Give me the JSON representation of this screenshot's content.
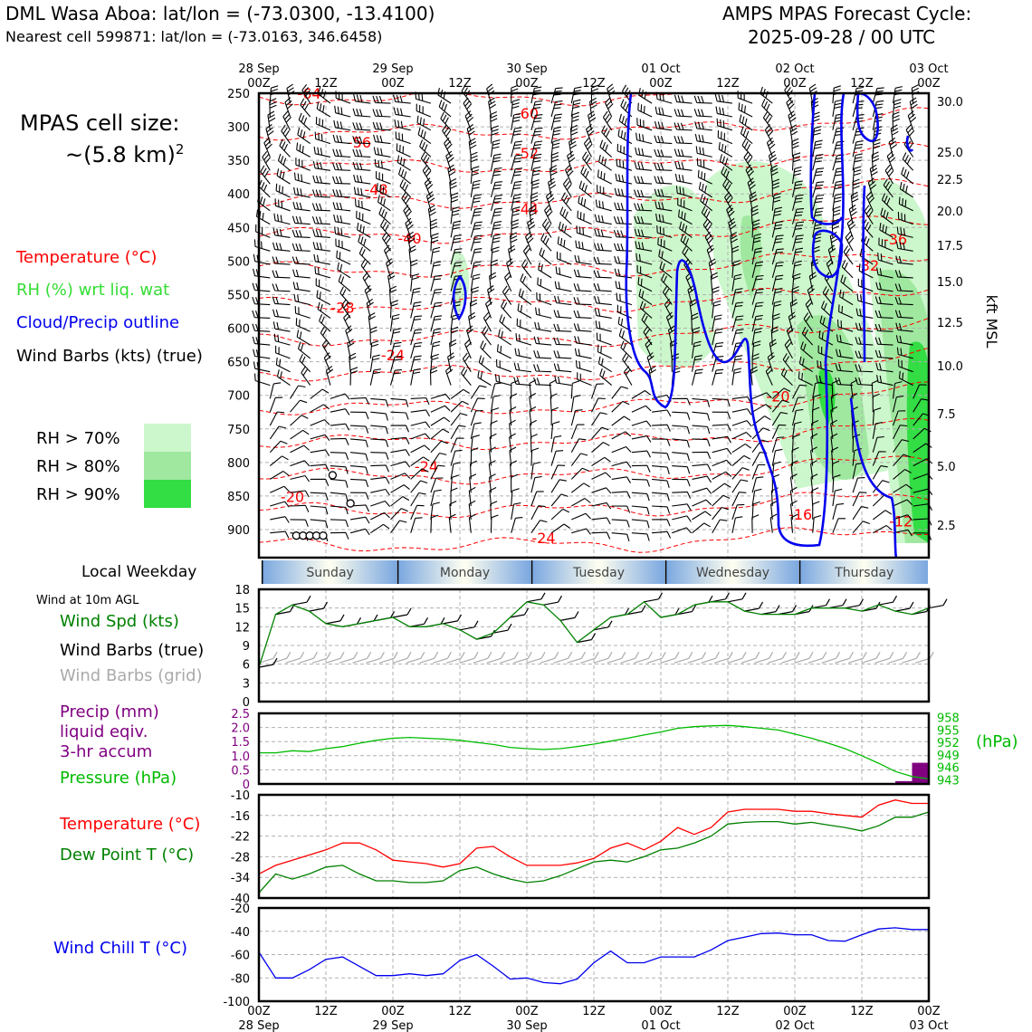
{
  "header": {
    "title_left": "DML Wasa Aboa: lat/lon = (-73.0300, -13.4100)",
    "subtitle_left": "Nearest cell 599871: lat/lon = (-73.0163, 346.6458)",
    "title_right_1": "AMPS MPAS Forecast Cycle:",
    "title_right_2": "2025-09-28 / 00 UTC"
  },
  "cell_size": {
    "line1": "MPAS cell size:",
    "line2": "~(5.8 km)",
    "exp": "2"
  },
  "legend_top": {
    "temperature": "Temperature (°C)",
    "rh": "RH (%) wrt liq. wat",
    "cloud": "Cloud/Precip outline",
    "barbs": "Wind Barbs (kts) (true)",
    "rh70": "RH > 70%",
    "rh80": "RH > 80%",
    "rh90": "RH > 90%"
  },
  "colors": {
    "temp": "#ff0000",
    "rh_text": "#33dd33",
    "cloud": "#0000ee",
    "rh70": "#ccf7cc",
    "rh80": "#a0e8a0",
    "rh90": "#33dd44",
    "wind_speed": "#008000",
    "precip": "#800080",
    "pressure": "#00bb00",
    "dewpoint": "#008000",
    "windchill": "#0000ee",
    "grid_barb": "#aaaaaa",
    "weekday_band": "#7aa7e0"
  },
  "weekday": {
    "title": "Local Weekday",
    "days": [
      "Sunday",
      "Monday",
      "Tuesday",
      "Wednesday",
      "Thursday"
    ]
  },
  "wind_panel": {
    "header": "Wind at 10m AGL",
    "spd_label": "Wind Spd (kts)",
    "barbs_true": "Wind Barbs (true)",
    "barbs_grid": "Wind Barbs (grid)"
  },
  "precip_panel": {
    "l1": "Precip (mm)",
    "l2": "liquid eqiv.",
    "l3": "3-hr accum",
    "pressure_label": "Pressure (hPa)",
    "hpa_unit": "(hPa)"
  },
  "temp_panel": {
    "temp_label": "Temperature (°C)",
    "dew_label": "Dew Point T (°C)"
  },
  "windchill_panel": {
    "label": "Wind Chill T (°C)"
  },
  "x_axis": {
    "top_labels": [
      [
        "28 Sep",
        "00Z"
      ],
      [
        "",
        "12Z"
      ],
      [
        "29 Sep",
        "00Z"
      ],
      [
        "",
        "12Z"
      ],
      [
        "30 Sep",
        "00Z"
      ],
      [
        "",
        "12Z"
      ],
      [
        "01 Oct",
        "00Z"
      ],
      [
        "",
        "12Z"
      ],
      [
        "02 Oct",
        "00Z"
      ],
      [
        "",
        "12Z"
      ],
      [
        "03 Oct",
        "00Z"
      ]
    ],
    "bottom_labels": [
      [
        "00Z",
        "28 Sep"
      ],
      [
        "12Z",
        ""
      ],
      [
        "00Z",
        "29 Sep"
      ],
      [
        "12Z",
        ""
      ],
      [
        "00Z",
        "30 Sep"
      ],
      [
        "12Z",
        ""
      ],
      [
        "00Z",
        "01 Oct"
      ],
      [
        "12Z",
        ""
      ],
      [
        "00Z",
        "02 Oct"
      ],
      [
        "12Z",
        ""
      ],
      [
        "00Z",
        "03 Oct"
      ]
    ]
  },
  "chart_data": [
    {
      "type": "heatmap",
      "title": "time-height cross section",
      "ylabel_right": "kft MSL",
      "x_range_hours": [
        0,
        120
      ],
      "y_pressure_ticks": [
        250,
        300,
        350,
        400,
        450,
        500,
        550,
        600,
        650,
        700,
        750,
        800,
        850,
        900
      ],
      "y_kft_ticks": [
        30.0,
        25.0,
        22.5,
        20.0,
        17.5,
        15.0,
        12.5,
        10.0,
        7.5,
        5.0,
        2.5
      ],
      "y_kft_labels": [
        "30.0",
        "25.0",
        "22.5",
        "20.0",
        "17.5",
        "15.0",
        "12.5",
        "10.0",
        "7.5",
        "5.0",
        "2.5"
      ],
      "temp_contour_labels": [
        {
          "text": "-64",
          "h": 9,
          "p": 258
        },
        {
          "text": "-60",
          "h": 48,
          "p": 288
        },
        {
          "text": "-56",
          "h": 18,
          "p": 331
        },
        {
          "text": "-52",
          "h": 48,
          "p": 347
        },
        {
          "text": "-48",
          "h": 21,
          "p": 401
        },
        {
          "text": "-44",
          "h": 48,
          "p": 430
        },
        {
          "text": "-40",
          "h": 27,
          "p": 474
        },
        {
          "text": "-36",
          "h": 114,
          "p": 475
        },
        {
          "text": "-32",
          "h": 109,
          "p": 514
        },
        {
          "text": "-28",
          "h": 15,
          "p": 577
        },
        {
          "text": "-24",
          "h": 24,
          "p": 648
        },
        {
          "text": "-24",
          "h": 30,
          "p": 814
        },
        {
          "text": "-24",
          "h": 51,
          "p": 920
        },
        {
          "text": "-20",
          "h": 93,
          "p": 709
        },
        {
          "text": "-20",
          "h": 6,
          "p": 859
        },
        {
          "text": "-16",
          "h": 97,
          "p": 885
        },
        {
          "text": "-12",
          "h": 115,
          "p": 895
        }
      ]
    },
    {
      "type": "line",
      "title": "Wind at 10m AGL",
      "ylabel": "Wind Spd (kts)",
      "ylim": [
        0,
        18
      ],
      "yticks": [
        0,
        3,
        6,
        9,
        12,
        15,
        18
      ],
      "x_hours": [
        0,
        3,
        6,
        9,
        12,
        15,
        18,
        21,
        24,
        27,
        30,
        33,
        36,
        39,
        42,
        45,
        48,
        51,
        54,
        57,
        60,
        63,
        66,
        69,
        72,
        75,
        78,
        81,
        84,
        87,
        90,
        93,
        96,
        99,
        102,
        105,
        108,
        111,
        114,
        117,
        120
      ],
      "series": [
        {
          "name": "Wind Spd (kts)",
          "values": [
            5.5,
            14.0,
            15.5,
            14.5,
            12.5,
            12.0,
            12.5,
            13.0,
            13.5,
            12.0,
            12.0,
            12.5,
            11.5,
            10.0,
            11.0,
            13.5,
            16.0,
            15.5,
            13.0,
            9.5,
            11.5,
            13.5,
            14.0,
            16.0,
            13.5,
            14.0,
            15.5,
            16.0,
            16.0,
            14.5,
            14.0,
            14.0,
            14.0,
            15.0,
            15.0,
            15.0,
            14.5,
            15.5,
            14.5,
            14.0,
            15.0
          ]
        }
      ]
    },
    {
      "type": "bar",
      "title": "Precip (mm) liquid eqiv. 3-hr accum",
      "ylim": [
        0,
        2.5
      ],
      "yticks": [
        0,
        0.5,
        1.0,
        1.5,
        2.0,
        2.5
      ],
      "ytick_labels": [
        "0",
        "0.5",
        "1.0",
        "1.5",
        "2.0",
        "2.5"
      ],
      "bars": [
        {
          "x_hours": [
            114,
            117
          ],
          "value": 0.1
        },
        {
          "x_hours": [
            117,
            120
          ],
          "value": 0.75
        }
      ]
    },
    {
      "type": "line",
      "title": "Pressure (hPa)",
      "ylim": [
        942,
        959
      ],
      "yticks": [
        943,
        946,
        949,
        952,
        955,
        958
      ],
      "x_hours": [
        0,
        3,
        6,
        9,
        12,
        15,
        18,
        21,
        24,
        27,
        30,
        33,
        36,
        39,
        42,
        45,
        48,
        51,
        54,
        57,
        60,
        63,
        66,
        69,
        72,
        75,
        78,
        81,
        84,
        87,
        90,
        93,
        96,
        99,
        102,
        105,
        108,
        111,
        114,
        117,
        120
      ],
      "series": [
        {
          "name": "Pressure (hPa)",
          "values": [
            949.5,
            949.5,
            950.0,
            949.8,
            950.5,
            951.0,
            951.8,
            952.5,
            953.0,
            953.2,
            953.0,
            952.8,
            952.5,
            952.0,
            951.5,
            950.8,
            950.5,
            950.3,
            950.5,
            951.0,
            951.6,
            952.3,
            953.0,
            953.8,
            954.5,
            955.4,
            955.8,
            956.0,
            956.1,
            955.8,
            955.4,
            955.0,
            954.0,
            953.0,
            951.8,
            950.5,
            948.8,
            947.0,
            945.0,
            943.8,
            943.2
          ]
        }
      ]
    },
    {
      "type": "line",
      "title": "Temperature / Dew Point",
      "ylim": [
        -40,
        -10
      ],
      "yticks": [
        -40,
        -34,
        -28,
        -22,
        -16,
        -10
      ],
      "x_hours": [
        0,
        3,
        6,
        9,
        12,
        15,
        18,
        21,
        24,
        27,
        30,
        33,
        36,
        39,
        42,
        45,
        48,
        51,
        54,
        57,
        60,
        63,
        66,
        69,
        72,
        75,
        78,
        81,
        84,
        87,
        90,
        93,
        96,
        99,
        102,
        105,
        108,
        111,
        114,
        117,
        120
      ],
      "series": [
        {
          "name": "Temperature (°C)",
          "values": [
            -33,
            -30.5,
            -29,
            -27.5,
            -26,
            -24,
            -24,
            -26,
            -29,
            -29.5,
            -30,
            -31,
            -30,
            -25.5,
            -25,
            -28,
            -30.5,
            -30.5,
            -30.5,
            -29.8,
            -28.5,
            -25.5,
            -24,
            -26,
            -23.5,
            -19.5,
            -21.5,
            -19.5,
            -15,
            -14.2,
            -14.2,
            -14.2,
            -14.8,
            -14.8,
            -15.5,
            -16,
            -16.5,
            -13,
            -11.5,
            -12.5,
            -12.5
          ]
        },
        {
          "name": "Dew Point T (°C)",
          "values": [
            -38.5,
            -33,
            -34.5,
            -33,
            -31,
            -30.5,
            -33,
            -35,
            -35,
            -35.5,
            -35.5,
            -35,
            -32,
            -31,
            -33,
            -34.5,
            -35.5,
            -35,
            -33.5,
            -31.5,
            -29.5,
            -29,
            -29.5,
            -28,
            -26,
            -25.5,
            -24,
            -22,
            -18.5,
            -18,
            -17.8,
            -17.8,
            -18.5,
            -18,
            -18.8,
            -19.5,
            -20.5,
            -19,
            -16.5,
            -16.5,
            -15
          ]
        }
      ]
    },
    {
      "type": "line",
      "title": "Wind Chill T (°C)",
      "ylim": [
        -100,
        -20
      ],
      "yticks": [
        -100,
        -80,
        -60,
        -40,
        -20
      ],
      "x_hours": [
        0,
        3,
        6,
        9,
        12,
        15,
        18,
        21,
        24,
        27,
        30,
        33,
        36,
        39,
        42,
        45,
        48,
        51,
        54,
        57,
        60,
        63,
        66,
        69,
        72,
        75,
        78,
        81,
        84,
        87,
        90,
        93,
        96,
        99,
        102,
        105,
        108,
        111,
        114,
        117,
        120
      ],
      "series": [
        {
          "name": "Wind Chill T (°C)",
          "values": [
            -58,
            -80,
            -80,
            -73,
            -64,
            -62,
            -70,
            -78,
            -78,
            -76.5,
            -78,
            -76.5,
            -65,
            -60,
            -70,
            -81,
            -80,
            -84,
            -85,
            -81,
            -67,
            -57,
            -67,
            -67,
            -62,
            -62,
            -62,
            -56,
            -48,
            -45,
            -42,
            -41.5,
            -43,
            -43,
            -48,
            -48.5,
            -43,
            -38,
            -37,
            -38.5,
            -38.5
          ]
        }
      ]
    }
  ]
}
